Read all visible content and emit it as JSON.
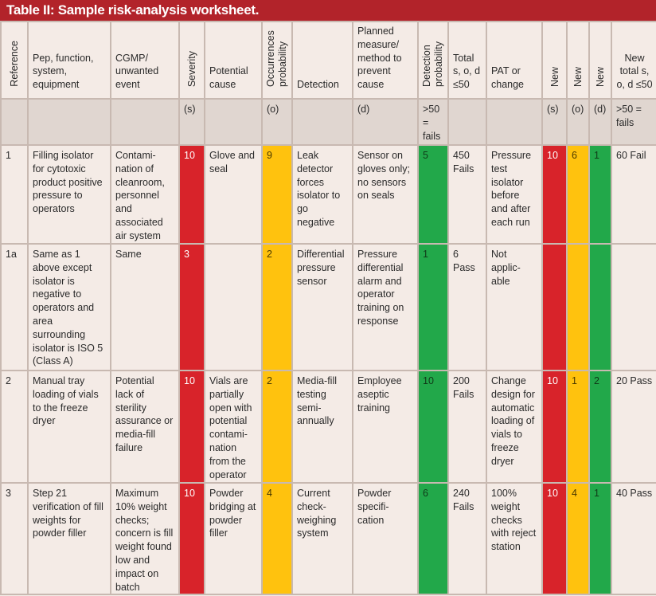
{
  "title": "Table II: Sample risk-analysis worksheet.",
  "headers": {
    "reference": "Reference",
    "pep": "Pep, function, system, equipment",
    "cgmp": "CGMP/ unwanted event",
    "severity": "Severity",
    "potential_cause": "Potential cause",
    "occurrences": "Occurrences probability",
    "detection": "Detection",
    "planned": "Planned measure/ method to prevent cause",
    "detection_prob": "Detection probability",
    "total": "Total s, o, d ≤50",
    "pat": "PAT or change",
    "new_s": "New",
    "new_o": "New",
    "new_d": "New",
    "new_total": "New total s, o, d ≤50"
  },
  "subheaders": {
    "severity": "(s)",
    "occurrences": "(o)",
    "planned": "(d)",
    "detection_prob": ">50 = fails",
    "new_s": "(s)",
    "new_o": "(o)",
    "new_d": "(d)",
    "new_total": ">50 = fails"
  },
  "rows": [
    {
      "reference": "1",
      "pep": "Filling isolator for cytotoxic product positive pressure to operators",
      "cgmp": "Contami-nation of cleanroom, personnel and associated air system",
      "severity": "10",
      "cause": "Glove and seal",
      "occurrence": "9",
      "detection": "Leak detector forces isolator to go negative",
      "planned": "Sensor on gloves only; no sensors on seals",
      "detection_prob": "5",
      "total": "450 Fails",
      "pat": "Pressure test isolator before and after each run",
      "new_s": "10",
      "new_o": "6",
      "new_d": "1",
      "new_total": "60 Fail"
    },
    {
      "reference": "1a",
      "pep": "Same as 1 above except isolator is negative to operators and area surrounding isolator is ISO 5 (Class A)",
      "cgmp": "Same",
      "severity": "3",
      "cause": "",
      "occurrence": "2",
      "detection": "Differential pressure sensor",
      "planned": "Pressure differential alarm and operator training on response",
      "detection_prob": "1",
      "total": "6 Pass",
      "pat": "Not applic-able",
      "new_s": "",
      "new_o": "",
      "new_d": "",
      "new_total": ""
    },
    {
      "reference": "2",
      "pep": "Manual tray loading of vials to the freeze dryer",
      "cgmp": "Potential lack of sterility assurance or media-fill failure",
      "severity": "10",
      "cause": "Vials are partially open with potential contami-nation from the operator",
      "occurrence": "2",
      "detection": "Media-fill testing semi-annually",
      "planned": "Employee aseptic training",
      "detection_prob": "10",
      "total": "200 Fails",
      "pat": "Change design for automatic loading of vials to freeze dryer",
      "new_s": "10",
      "new_o": "1",
      "new_d": "2",
      "new_total": "20 Pass"
    },
    {
      "reference": "3",
      "pep": "Step 21 verification of fill weights for powder filler",
      "cgmp": "Maximum 10% weight checks; concern is fill weight found low and impact on batch",
      "severity": "10",
      "cause": "Powder bridging at powder filler",
      "occurrence": "4",
      "detection": "Current check-weighing system",
      "planned": "Powder specifi-cation",
      "detection_prob": "6",
      "total": "240 Fails",
      "pat": "100% weight checks with reject station",
      "new_s": "10",
      "new_o": "4",
      "new_d": "1",
      "new_total": "40 Pass"
    }
  ]
}
